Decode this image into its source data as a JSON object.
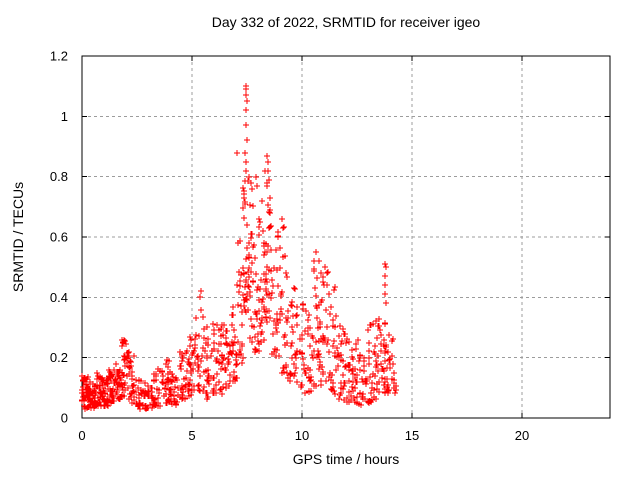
{
  "chart_data": {
    "type": "scatter",
    "title": "Day 332 of 2022, SRMTID for receiver igeo",
    "xlabel": "GPS time / hours",
    "ylabel": "SRMTID / TECUs",
    "xlim": [
      0,
      24
    ],
    "ylim": [
      0,
      1.2
    ],
    "xticks": [
      0,
      5,
      10,
      15,
      20
    ],
    "xtick_labels": [
      "0",
      "5",
      "10",
      "15",
      "20"
    ],
    "yticks": [
      0,
      0.2,
      0.4,
      0.6,
      0.8,
      1,
      1.2
    ],
    "ytick_labels": [
      "0",
      "0.2",
      "0.4",
      "0.6",
      "0.8",
      "1",
      "1.2"
    ],
    "grid": true,
    "ticks_mirrored": true,
    "legend": "none",
    "marker": "plus",
    "marker_size": 7,
    "marker_color": "#ff0000",
    "grid_color": "#9c9c9c",
    "border_color": "#000000",
    "text_color": "#000000",
    "background_color": "#ffffff",
    "data_extent_hours": [
      0,
      14.3
    ],
    "peak": {
      "x": 7.45,
      "y": 1.1
    },
    "points": [
      [
        7.44,
        1.1
      ],
      [
        7.47,
        1.09
      ],
      [
        7.45,
        1.07
      ],
      [
        7.49,
        1.05
      ],
      [
        7.46,
        1.02
      ],
      [
        7.44,
        0.97
      ],
      [
        7.48,
        0.92
      ],
      [
        7.43,
        0.88
      ],
      [
        7.05,
        0.88
      ],
      [
        7.47,
        0.85
      ],
      [
        7.45,
        0.82
      ],
      [
        7.6,
        0.8
      ],
      [
        7.66,
        0.78
      ],
      [
        7.72,
        0.76
      ],
      [
        7.9,
        0.8
      ],
      [
        7.96,
        0.77
      ],
      [
        8.2,
        0.72
      ],
      [
        8.3,
        0.82
      ],
      [
        8.42,
        0.87
      ],
      [
        8.46,
        0.85
      ],
      [
        8.44,
        0.82
      ],
      [
        8.48,
        0.79
      ],
      [
        9.1,
        0.66
      ],
      [
        9.14,
        0.63
      ],
      [
        10.62,
        0.55
      ],
      [
        10.55,
        0.52
      ],
      [
        11.05,
        0.5
      ],
      [
        11.15,
        0.48
      ],
      [
        5.42,
        0.42
      ],
      [
        5.38,
        0.4
      ],
      [
        4.92,
        0.27
      ],
      [
        1.92,
        0.26
      ],
      [
        13.78,
        0.51
      ],
      [
        13.8,
        0.5
      ],
      [
        13.76,
        0.47
      ],
      [
        13.79,
        0.44
      ],
      [
        13.77,
        0.41
      ],
      [
        13.81,
        0.38
      ]
    ],
    "clusters_note": "density envelope read from plot: [x_start_h, x_end_h, y_min_TECUs, y_max_TECUs, n_points]",
    "clusters": [
      [
        0.0,
        0.3,
        0.03,
        0.14,
        40
      ],
      [
        0.3,
        0.6,
        0.03,
        0.12,
        36
      ],
      [
        0.6,
        0.9,
        0.04,
        0.15,
        36
      ],
      [
        0.9,
        1.2,
        0.04,
        0.14,
        32
      ],
      [
        1.2,
        1.5,
        0.05,
        0.17,
        30
      ],
      [
        1.5,
        1.8,
        0.06,
        0.21,
        28
      ],
      [
        1.8,
        2.1,
        0.07,
        0.26,
        28
      ],
      [
        2.1,
        2.4,
        0.05,
        0.22,
        24
      ],
      [
        2.4,
        2.8,
        0.03,
        0.13,
        26
      ],
      [
        2.8,
        3.2,
        0.03,
        0.12,
        26
      ],
      [
        3.2,
        3.6,
        0.04,
        0.17,
        26
      ],
      [
        3.6,
        4.0,
        0.05,
        0.2,
        28
      ],
      [
        4.0,
        4.4,
        0.04,
        0.16,
        26
      ],
      [
        4.4,
        4.8,
        0.06,
        0.23,
        26
      ],
      [
        4.8,
        5.1,
        0.07,
        0.27,
        24
      ],
      [
        5.1,
        5.6,
        0.09,
        0.42,
        30
      ],
      [
        5.6,
        6.0,
        0.06,
        0.32,
        26
      ],
      [
        6.0,
        6.4,
        0.08,
        0.31,
        28
      ],
      [
        6.4,
        6.8,
        0.1,
        0.34,
        28
      ],
      [
        6.8,
        7.1,
        0.12,
        0.45,
        24
      ],
      [
        7.1,
        7.3,
        0.18,
        0.6,
        20
      ],
      [
        7.3,
        7.55,
        0.32,
        0.8,
        30
      ],
      [
        7.55,
        7.8,
        0.25,
        0.72,
        26
      ],
      [
        7.8,
        8.1,
        0.22,
        0.66,
        26
      ],
      [
        8.1,
        8.35,
        0.25,
        0.62,
        22
      ],
      [
        8.35,
        8.6,
        0.3,
        0.78,
        28
      ],
      [
        8.6,
        9.0,
        0.2,
        0.62,
        28
      ],
      [
        9.0,
        9.3,
        0.15,
        0.67,
        22
      ],
      [
        9.3,
        9.7,
        0.12,
        0.46,
        26
      ],
      [
        9.7,
        10.1,
        0.1,
        0.38,
        26
      ],
      [
        10.1,
        10.5,
        0.08,
        0.36,
        26
      ],
      [
        10.5,
        10.8,
        0.1,
        0.55,
        24
      ],
      [
        10.8,
        11.2,
        0.1,
        0.52,
        28
      ],
      [
        11.2,
        11.6,
        0.08,
        0.46,
        26
      ],
      [
        11.6,
        12.0,
        0.06,
        0.32,
        26
      ],
      [
        12.0,
        12.4,
        0.05,
        0.28,
        26
      ],
      [
        12.4,
        12.8,
        0.04,
        0.26,
        26
      ],
      [
        12.8,
        13.2,
        0.05,
        0.31,
        26
      ],
      [
        13.2,
        13.6,
        0.06,
        0.36,
        28
      ],
      [
        13.6,
        13.85,
        0.08,
        0.35,
        22
      ],
      [
        13.85,
        14.3,
        0.08,
        0.28,
        24
      ]
    ],
    "seed": 1332
  }
}
